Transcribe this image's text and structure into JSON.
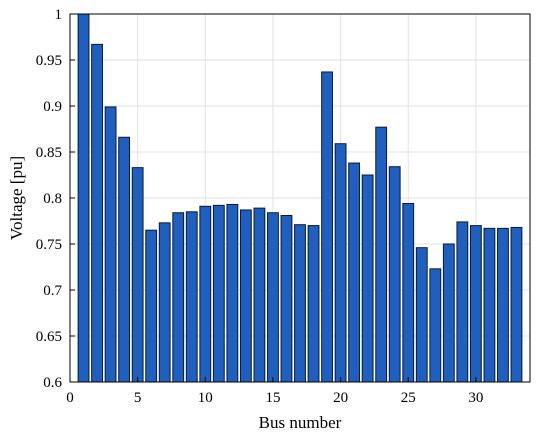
{
  "chart_data": {
    "type": "bar",
    "xlabel": "Bus number",
    "ylabel": "Voltage [pu]",
    "xlim": [
      0,
      34
    ],
    "ylim": [
      0.6,
      1.0
    ],
    "grid": true,
    "bar_color": "#1f5fbf",
    "bar_edge_color": "#0b1a33",
    "grid_color": "#e2e2e2",
    "x_ticks": [
      0,
      5,
      10,
      15,
      20,
      25,
      30
    ],
    "x_tick_labels": [
      "0",
      "5",
      "10",
      "15",
      "20",
      "25",
      "30"
    ],
    "y_ticks": [
      0.6,
      0.65,
      0.7,
      0.75,
      0.8,
      0.85,
      0.9,
      0.95,
      1.0
    ],
    "y_tick_labels": [
      "0.6",
      "0.65",
      "0.7",
      "0.75",
      "0.8",
      "0.85",
      "0.9",
      "0.95",
      "1"
    ],
    "categories": [
      1,
      2,
      3,
      4,
      5,
      6,
      7,
      8,
      9,
      10,
      11,
      12,
      13,
      14,
      15,
      16,
      17,
      18,
      19,
      20,
      21,
      22,
      23,
      24,
      25,
      26,
      27,
      28,
      29,
      30,
      31,
      32,
      33
    ],
    "values": [
      1.0,
      0.967,
      0.899,
      0.866,
      0.833,
      0.765,
      0.773,
      0.784,
      0.785,
      0.791,
      0.792,
      0.793,
      0.787,
      0.789,
      0.784,
      0.781,
      0.771,
      0.77,
      0.937,
      0.859,
      0.838,
      0.825,
      0.877,
      0.834,
      0.794,
      0.746,
      0.723,
      0.75,
      0.774,
      0.77,
      0.767,
      0.767,
      0.768
    ]
  }
}
